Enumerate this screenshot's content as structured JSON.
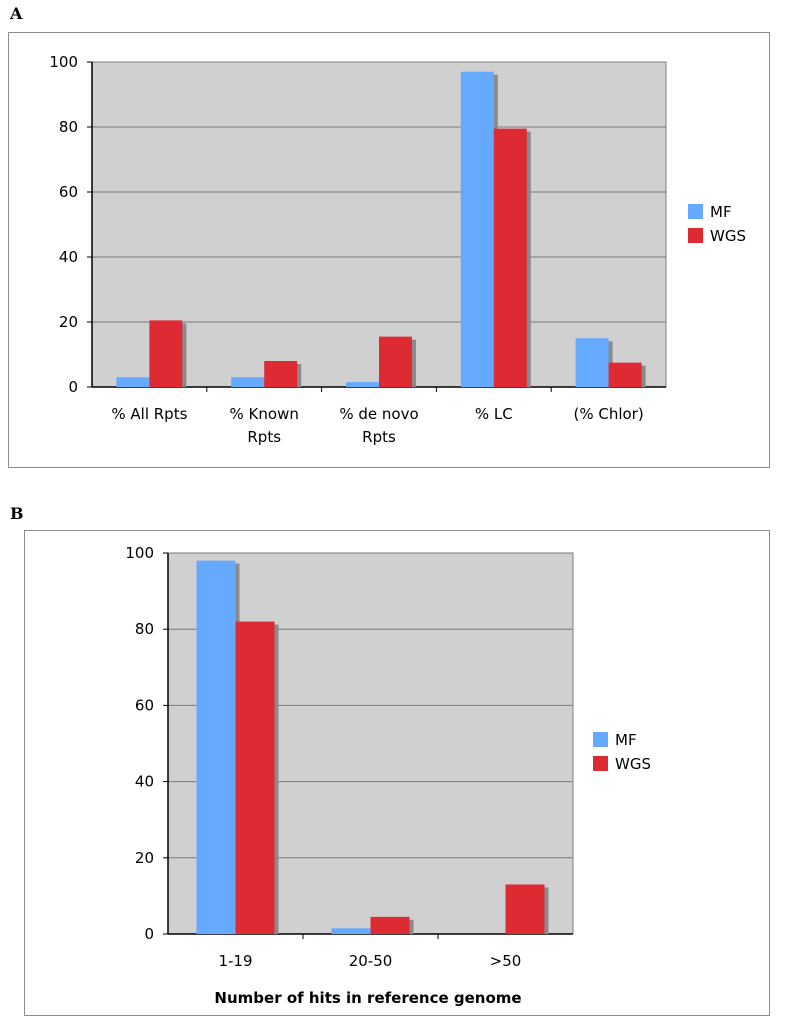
{
  "panels": [
    {
      "letter": "A",
      "legend": [
        {
          "name": "MF",
          "color": "#66aaff"
        },
        {
          "name": "WGS",
          "color": "#dd2a33"
        }
      ]
    },
    {
      "letter": "B",
      "legend": [
        {
          "name": "MF",
          "color": "#66aaff"
        },
        {
          "name": "WGS",
          "color": "#dd2a33"
        }
      ]
    }
  ],
  "chart_data": [
    {
      "type": "bar",
      "title": "",
      "xlabel": "",
      "ylabel": "",
      "ylim": [
        0,
        100
      ],
      "yticks": [
        0,
        20,
        40,
        60,
        80,
        100
      ],
      "grid": true,
      "legend_position": "right",
      "categories": [
        [
          "% All Rpts"
        ],
        [
          "% Known",
          "Rpts"
        ],
        [
          "% de novo",
          "Rpts"
        ],
        [
          "% LC"
        ],
        [
          "(% Chlor)"
        ]
      ],
      "series": [
        {
          "name": "MF",
          "values": [
            3,
            3,
            1.5,
            97,
            15
          ]
        },
        {
          "name": "WGS",
          "values": [
            20.5,
            8,
            15.5,
            79.5,
            7.5
          ]
        }
      ]
    },
    {
      "type": "bar",
      "title": "",
      "xlabel": "Number of hits in reference genome",
      "ylabel": "",
      "ylim": [
        0,
        100
      ],
      "yticks": [
        0,
        20,
        40,
        60,
        80,
        100
      ],
      "grid": true,
      "legend_position": "right",
      "categories": [
        [
          "1-19"
        ],
        [
          "20-50"
        ],
        [
          ">50"
        ]
      ],
      "series": [
        {
          "name": "MF",
          "values": [
            98,
            1.5,
            0
          ]
        },
        {
          "name": "WGS",
          "values": [
            82,
            4.5,
            13
          ]
        }
      ]
    }
  ]
}
